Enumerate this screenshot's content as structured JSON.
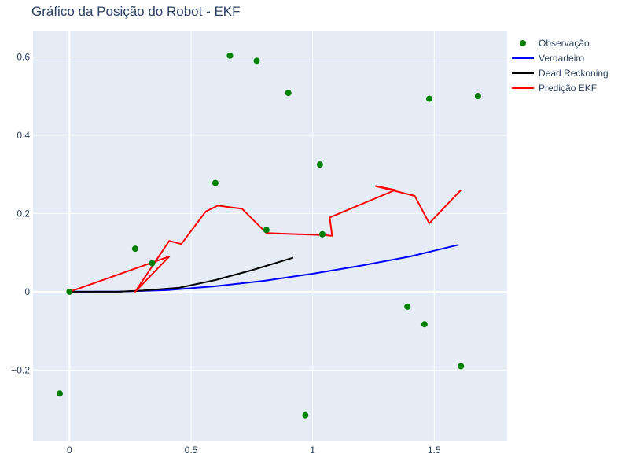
{
  "chart_data": {
    "type": "line",
    "title": "Gráfico da Posição do Robot - EKF",
    "xlabel": "",
    "ylabel": "",
    "xlim": [
      -0.15,
      1.8
    ],
    "ylim": [
      -0.38,
      0.665
    ],
    "xticks": [
      0,
      0.5,
      1,
      1.5
    ],
    "xtick_labels": [
      "0",
      "0.5",
      "1",
      "1.5"
    ],
    "yticks": [
      -0.2,
      0,
      0.2,
      0.4,
      0.6
    ],
    "ytick_labels": [
      "−0.2",
      "0",
      "0.2",
      "0.4",
      "0.6"
    ],
    "grid": true,
    "legend_position": "top-right",
    "series": [
      {
        "name": "Observação",
        "mode": "markers",
        "color": "#008000",
        "x": [
          0.0,
          -0.04,
          0.27,
          0.34,
          0.6,
          0.66,
          0.77,
          0.81,
          0.9,
          0.97,
          1.03,
          1.04,
          1.39,
          1.46,
          1.48,
          1.61,
          1.68
        ],
        "y": [
          0.0,
          -0.26,
          0.11,
          0.073,
          0.278,
          0.603,
          0.59,
          0.158,
          0.508,
          -0.315,
          0.325,
          0.147,
          -0.038,
          -0.083,
          0.493,
          -0.19,
          0.5
        ]
      },
      {
        "name": "Verdadeiro",
        "mode": "lines",
        "color": "#0000ff",
        "x": [
          0.0,
          0.2,
          0.4,
          0.6,
          0.8,
          1.0,
          1.2,
          1.4,
          1.6
        ],
        "y": [
          0.0,
          0.0005,
          0.004,
          0.014,
          0.028,
          0.046,
          0.067,
          0.09,
          0.12
        ]
      },
      {
        "name": "Dead Reckoning",
        "mode": "lines",
        "color": "#000000",
        "x": [
          0.0,
          0.2,
          0.3,
          0.45,
          0.6,
          0.75,
          0.92
        ],
        "y": [
          0.0,
          0.0,
          0.003,
          0.01,
          0.03,
          0.055,
          0.087
        ]
      },
      {
        "name": "Predição EKF",
        "mode": "lines",
        "color": "#ff0000",
        "x": [
          0.0,
          0.41,
          0.27,
          0.41,
          0.46,
          0.56,
          0.61,
          0.71,
          0.81,
          1.04,
          1.08,
          1.07,
          1.34,
          1.26,
          1.42,
          1.48,
          1.61
        ],
        "y": [
          0.0,
          0.09,
          0.0,
          0.13,
          0.122,
          0.205,
          0.22,
          0.212,
          0.15,
          0.145,
          0.143,
          0.19,
          0.26,
          0.27,
          0.245,
          0.175,
          0.26
        ]
      }
    ]
  }
}
